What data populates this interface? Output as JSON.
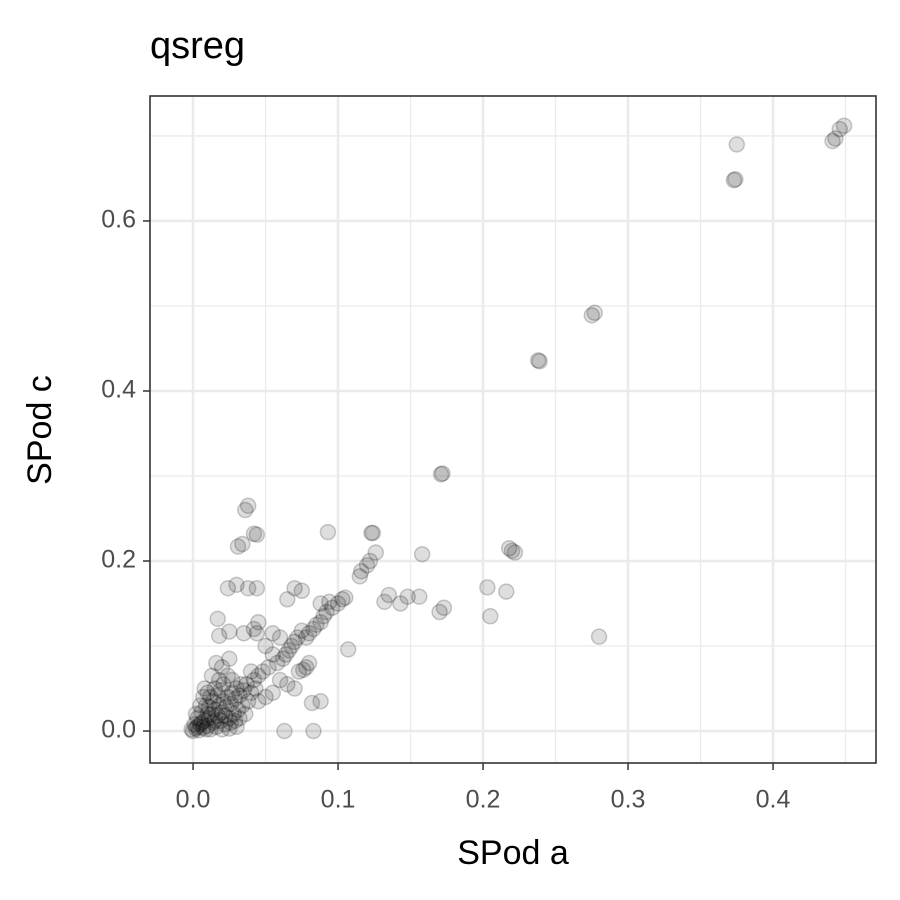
{
  "chart_data": {
    "type": "scatter",
    "title": "qsreg",
    "x_label": "SPod a",
    "y_label": "SPod c",
    "color": "#000000",
    "point_alpha": 0.13,
    "grid": true,
    "xlim": [
      -0.0297,
      0.471
    ],
    "ylim": [
      -0.0376,
      0.747
    ],
    "xticks": [
      {
        "value": 0,
        "label": "0.0"
      },
      0.1,
      0.2,
      0.3,
      0.4
    ],
    "yticks": [
      {
        "value": 0,
        "label": "0.0"
      },
      0.2,
      0.4,
      0.6
    ],
    "x_minor_ticks": [
      0.05,
      0.15,
      0.25,
      0.35,
      0.45
    ],
    "y_minor_ticks": [
      0.1,
      0.3,
      0.5,
      0.7
    ],
    "x": [
      0.449,
      0.446,
      0.441,
      0.443,
      0.375,
      0.373,
      0.374,
      0.277,
      0.275,
      0.238,
      0.239,
      0.171,
      0.172,
      0.28,
      0.222,
      0.218,
      0.22,
      0.216,
      0.203,
      0.205,
      0.173,
      0.17,
      0.158,
      0.156,
      0.148,
      0.143,
      0.132,
      0.135,
      0.124,
      0.123,
      0.126,
      0.122,
      0.12,
      0.116,
      0.115,
      0.093,
      0.105,
      0.103,
      0.1,
      0.107,
      0.096,
      0.094,
      0.092,
      0.09,
      0.088,
      0.085,
      0.083,
      0.08,
      0.078,
      0.075,
      0.072,
      0.07,
      0.068,
      0.066,
      0.064,
      0.062,
      0.075,
      0.07,
      0.065,
      0.088,
      0.088,
      0.082,
      0.083,
      0.063,
      0.08,
      0.078,
      0.076,
      0.073,
      0.038,
      0.036,
      0.042,
      0.044,
      0.031,
      0.034,
      0.03,
      0.024,
      0.038,
      0.044,
      0.045,
      0.044,
      0.017,
      0.025,
      0.018,
      0.035,
      0.042,
      0.055,
      0.06,
      0.05,
      0.055,
      0.058,
      0.052,
      0.048,
      0.045,
      0.04,
      0.042,
      0.037,
      0.06,
      0.065,
      0.07,
      0.055,
      0.05,
      0.045,
      0.0,
      0.002,
      0.004,
      0.005,
      0.007,
      0.008,
      0.01,
      0.011,
      0.012,
      0.013,
      0.014,
      0.015,
      0.016,
      0.017,
      0.018,
      0.019,
      0.02,
      0.021,
      0.022,
      0.023,
      0.024,
      0.025,
      0.026,
      0.027,
      0.028,
      0.029,
      0.03,
      0.031,
      0.032,
      0.033,
      0.034,
      0.035,
      0.003,
      0.006,
      0.009,
      0.012,
      0.015,
      0.018,
      0.021,
      0.024,
      0.027,
      0.01,
      0.008,
      0.013,
      0.016,
      0.02,
      0.025,
      0.001,
      0.003,
      0.006,
      0.009,
      0.011,
      0.014,
      0.017,
      0.019,
      0.022,
      0.026,
      0.029,
      0.032,
      0.036,
      0.038,
      0.04,
      0.043,
      -0.001,
      0.005,
      0.007,
      0.002,
      0.01,
      0.015,
      0.02,
      0.025,
      0.03
    ],
    "values": [
      0.712,
      0.708,
      0.694,
      0.697,
      0.69,
      0.648,
      0.649,
      0.492,
      0.489,
      0.436,
      0.435,
      0.302,
      0.303,
      0.111,
      0.21,
      0.215,
      0.212,
      0.164,
      0.169,
      0.135,
      0.145,
      0.14,
      0.208,
      0.158,
      0.158,
      0.15,
      0.152,
      0.16,
      0.233,
      0.233,
      0.21,
      0.2,
      0.195,
      0.188,
      0.182,
      0.234,
      0.157,
      0.155,
      0.15,
      0.096,
      0.145,
      0.152,
      0.14,
      0.135,
      0.128,
      0.125,
      0.12,
      0.115,
      0.11,
      0.118,
      0.11,
      0.105,
      0.1,
      0.095,
      0.09,
      0.085,
      0.165,
      0.168,
      0.155,
      0.15,
      0.035,
      0.033,
      0.0,
      0.0,
      0.08,
      0.075,
      0.072,
      0.07,
      0.265,
      0.26,
      0.232,
      0.231,
      0.217,
      0.22,
      0.172,
      0.168,
      0.168,
      0.168,
      0.128,
      0.115,
      0.132,
      0.117,
      0.112,
      0.115,
      0.12,
      0.115,
      0.11,
      0.1,
      0.09,
      0.08,
      0.075,
      0.07,
      0.065,
      0.07,
      0.06,
      0.055,
      0.06,
      0.055,
      0.05,
      0.045,
      0.04,
      0.035,
      0.0,
      0.003,
      0.001,
      0.008,
      0.004,
      0.012,
      0.006,
      0.015,
      0.002,
      0.02,
      0.01,
      0.025,
      0.005,
      0.018,
      0.03,
      0.012,
      0.022,
      0.035,
      0.008,
      0.028,
      0.04,
      0.015,
      0.032,
      0.045,
      0.02,
      0.038,
      0.05,
      0.025,
      0.042,
      0.055,
      0.03,
      0.048,
      0.015,
      0.022,
      0.03,
      0.04,
      0.05,
      0.06,
      0.055,
      0.065,
      0.06,
      0.045,
      0.05,
      0.065,
      0.08,
      0.075,
      0.085,
      0.008,
      0.005,
      0.01,
      0.002,
      0.028,
      0.035,
      0.042,
      0.048,
      0.018,
      0.01,
      0.012,
      0.015,
      0.02,
      0.035,
      0.045,
      0.05,
      0.002,
      0.03,
      0.04,
      0.02,
      0.02,
      0.012,
      0.002,
      0.003,
      0.005
    ]
  }
}
